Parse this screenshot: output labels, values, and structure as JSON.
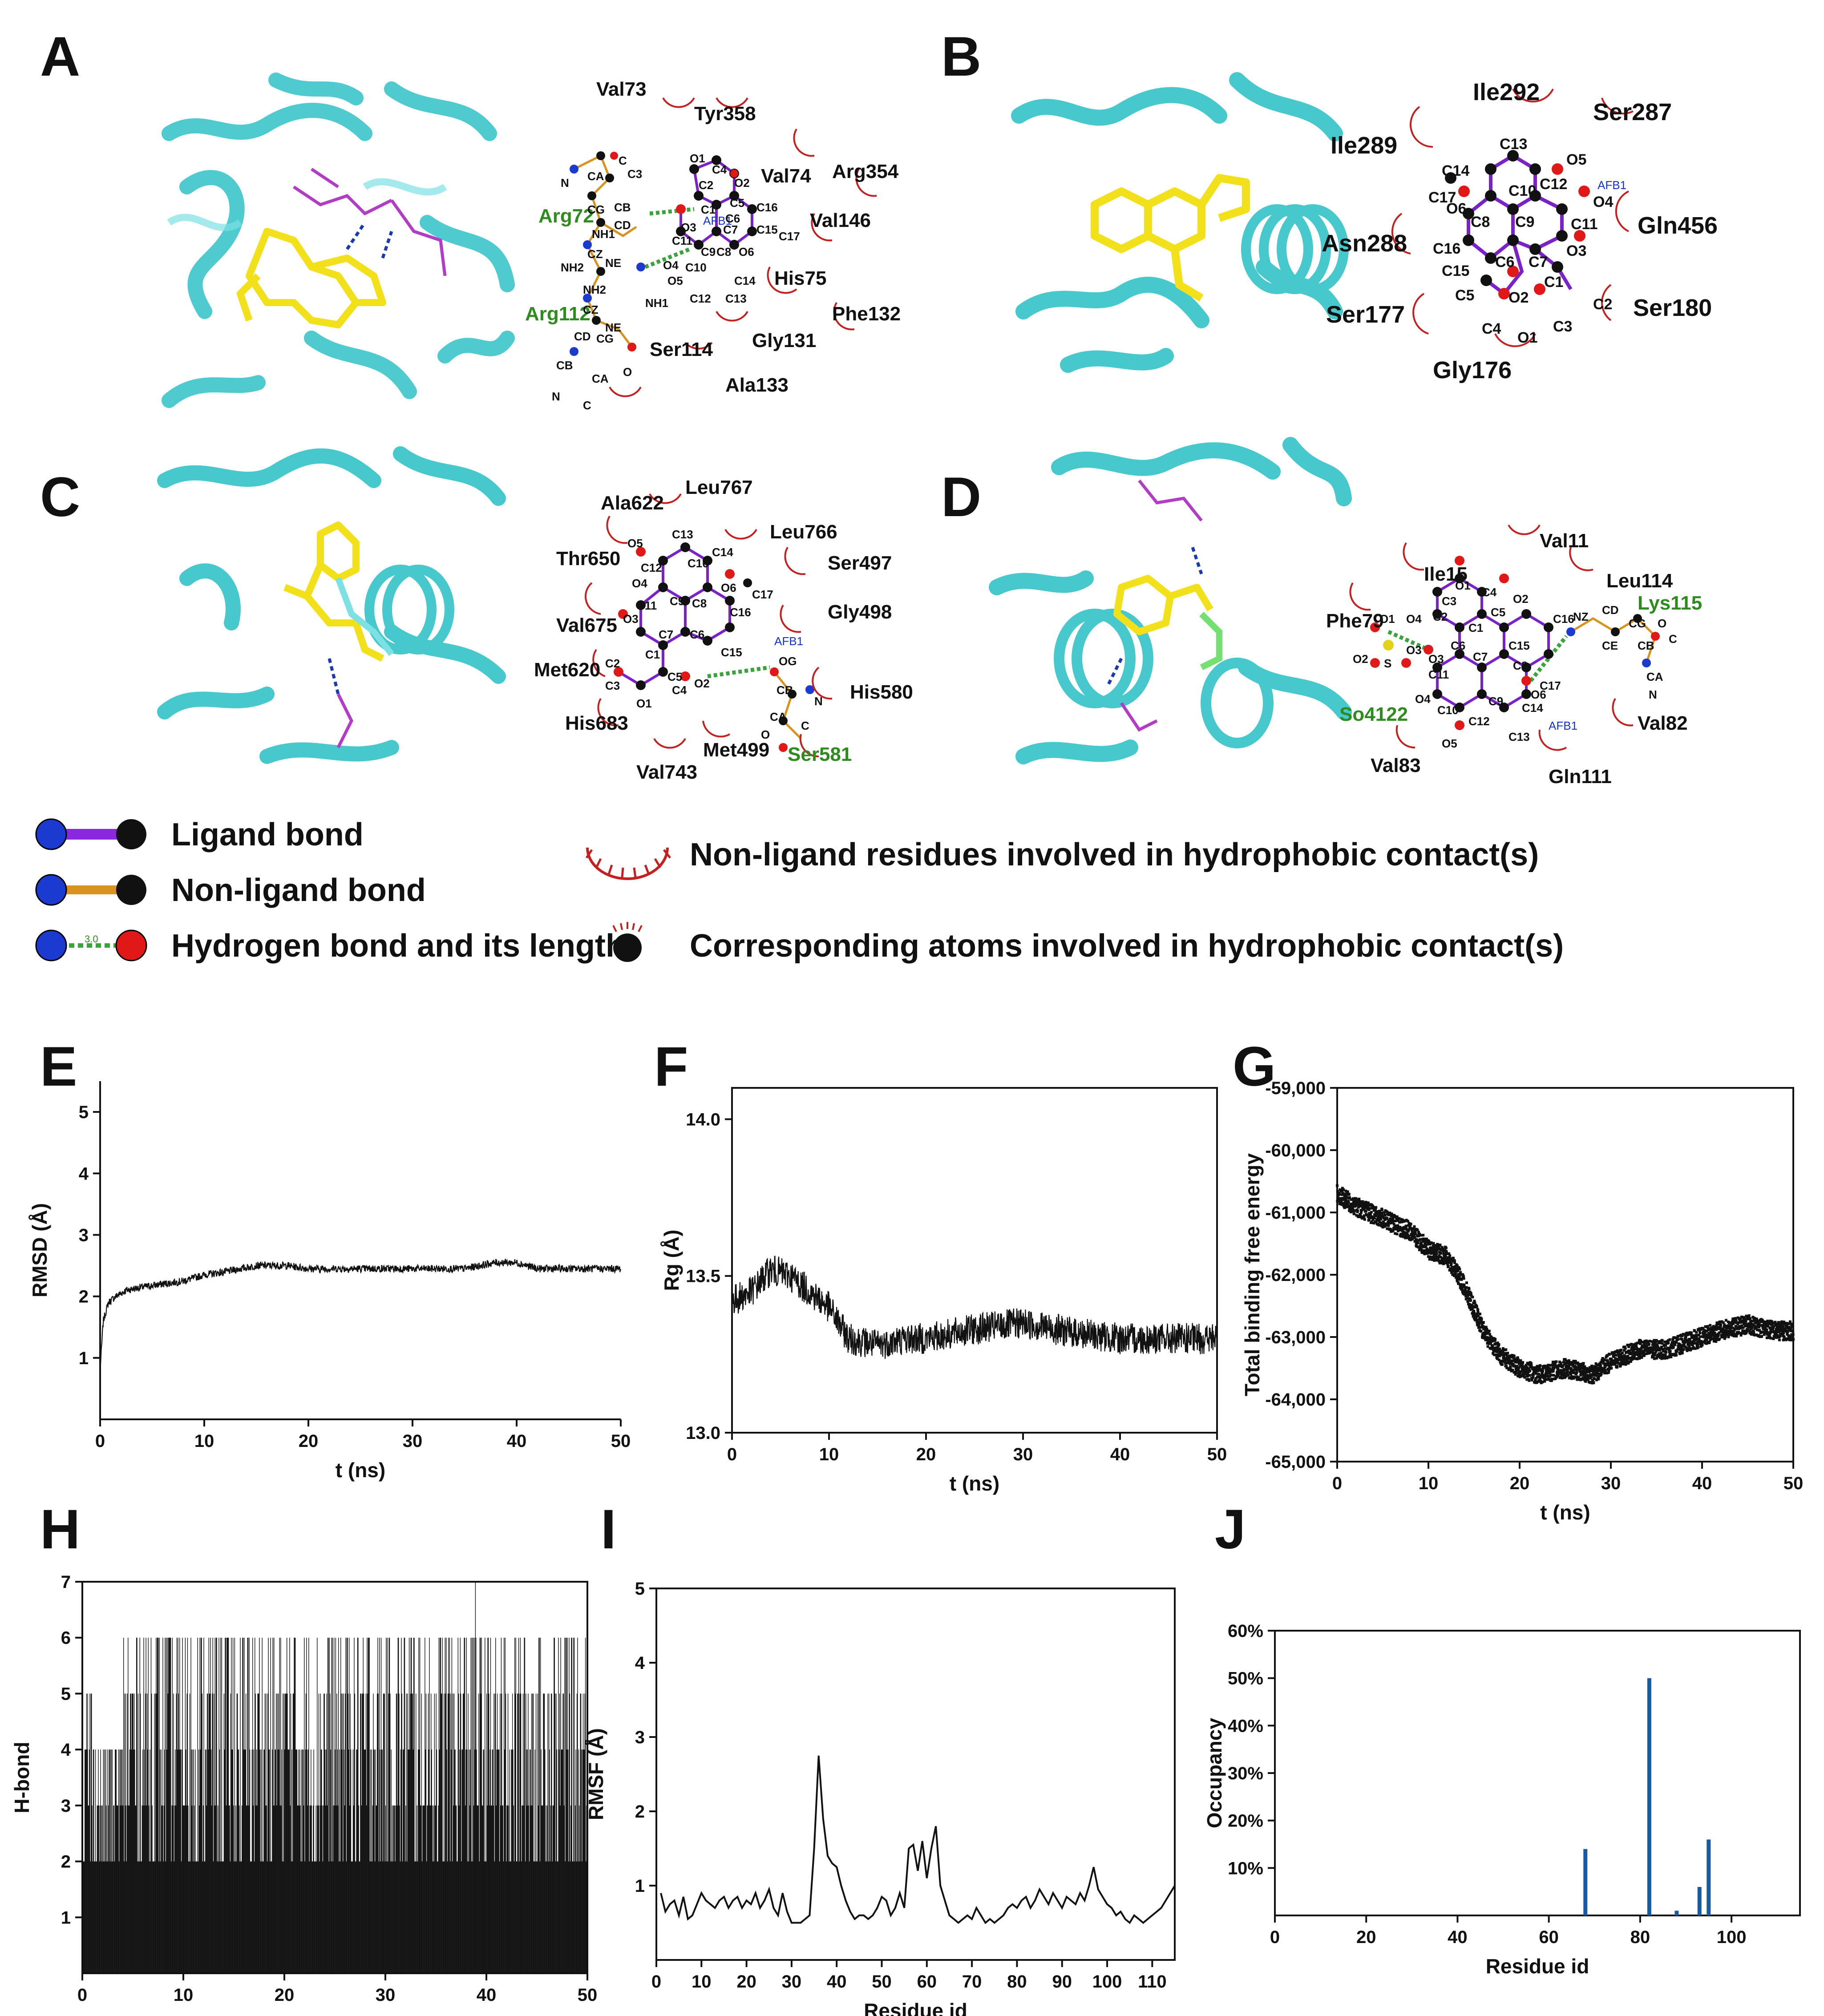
{
  "figure": {
    "panel_labels": [
      "A",
      "B",
      "C",
      "D",
      "E",
      "F",
      "G",
      "H",
      "I",
      "J"
    ],
    "ligand_code": "AFB1",
    "hbond_len_text": "3.0",
    "panels": {
      "A": {
        "residues": [
          "Val73",
          "Tyr358",
          "Val74",
          "Arg354",
          "Val146",
          "His75",
          "Phe132",
          "Gly131",
          "Ala133",
          "Ser114"
        ],
        "hbond_residues": [
          "Arg72",
          "Arg112"
        ],
        "atoms": [
          "C",
          "C3",
          "O1",
          "C4",
          "O2",
          "C2",
          "C5",
          "C1",
          "C6",
          "C7",
          "C16",
          "C15",
          "C17",
          "O6",
          "O3",
          "C11",
          "C9",
          "C8",
          "C10",
          "O5",
          "C14",
          "C12",
          "C13",
          "O4",
          "CA",
          "N",
          "CB",
          "CG",
          "CD",
          "NH1",
          "NE",
          "CZ",
          "NH2",
          "NH2",
          "NH1",
          "CZ",
          "NE",
          "CD",
          "CG",
          "CB",
          "CA",
          "O",
          "N",
          "C"
        ]
      },
      "B": {
        "residues": [
          "Ile292",
          "Ser287",
          "Ile289",
          "Gln456",
          "Asn288",
          "Ser180",
          "Ser177",
          "Gly176"
        ],
        "atoms": [
          "C13",
          "O5",
          "C14",
          "C12",
          "C10",
          "C17",
          "O4",
          "O6",
          "C8",
          "C9",
          "C11",
          "C16",
          "O3",
          "C6",
          "C7",
          "C15",
          "C1",
          "C5",
          "O2",
          "C2",
          "C4",
          "C3",
          "O1"
        ]
      },
      "C": {
        "residues": [
          "Leu767",
          "Ala622",
          "Leu766",
          "Ser497",
          "Thr650",
          "Gly498",
          "Val675",
          "Met620",
          "His580",
          "His683",
          "Met499",
          "Val743"
        ],
        "hbond_residues": [
          "Ser581"
        ],
        "atoms": [
          "O5",
          "C13",
          "C12",
          "C10",
          "C14",
          "O4",
          "C9",
          "C8",
          "O6",
          "C17",
          "C11",
          "C16",
          "O3",
          "C7",
          "C6",
          "C15",
          "C1",
          "C5",
          "OG",
          "C2",
          "O2",
          "CB",
          "C3",
          "C4",
          "CA",
          "N",
          "O1",
          "C",
          "O"
        ]
      },
      "D": {
        "residues": [
          "Val11",
          "Ile15",
          "Leu114",
          "Phe79",
          "Val82",
          "Val83",
          "Gln111"
        ],
        "hbond_residues": [
          "Lys115",
          "So4122"
        ],
        "atoms": [
          "O1",
          "C4",
          "C3",
          "C5",
          "O2",
          "C2",
          "C1",
          "O1",
          "O4",
          "C6",
          "C16",
          "NZ",
          "CD",
          "CG",
          "O",
          "O3",
          "C15",
          "C",
          "O2",
          "S",
          "O3",
          "C11",
          "C7",
          "C8",
          "CE",
          "CB",
          "O4",
          "C10",
          "C9",
          "O6",
          "C17",
          "CA",
          "C12",
          "C14",
          "N",
          "O5",
          "C13"
        ]
      }
    },
    "legend": {
      "ligand_bond": "Ligand bond",
      "non_ligand_bond": "Non-ligand bond",
      "hbond": "Hydrogen bond and its length",
      "hydrophobic_residue": "Non-ligand residues involved in hydrophobic contact(s)",
      "hydrophobic_atom": "Corresponding atoms involved in hydrophobic contact(s)"
    }
  },
  "chart_data": [
    {
      "panel": "E",
      "type": "line",
      "title": "",
      "xlabel": "t (ns)",
      "ylabel": "RMSD (Å)",
      "xlim": [
        0,
        50
      ],
      "ylim": [
        0,
        5.5
      ],
      "xticks": [
        "0",
        "10",
        "20",
        "30",
        "40",
        "50"
      ],
      "yticks": [
        "1",
        "2",
        "3",
        "4",
        "5"
      ],
      "series": [
        {
          "name": "RMSD",
          "x": [
            0,
            0.3,
            0.8,
            1.5,
            2.5,
            4,
            6,
            8,
            10,
            12,
            15,
            18,
            20,
            22,
            25,
            28,
            30,
            32,
            35,
            38,
            40,
            42,
            45,
            48,
            50
          ],
          "y": [
            0.8,
            1.6,
            1.9,
            2.0,
            2.1,
            2.15,
            2.2,
            2.25,
            2.35,
            2.4,
            2.5,
            2.5,
            2.45,
            2.45,
            2.45,
            2.45,
            2.45,
            2.45,
            2.45,
            2.55,
            2.55,
            2.45,
            2.45,
            2.45,
            2.45
          ],
          "noise": 0.06
        }
      ]
    },
    {
      "panel": "F",
      "type": "line",
      "title": "",
      "xlabel": "t (ns)",
      "ylabel": "Rg (Å)",
      "xlim": [
        0,
        50
      ],
      "ylim": [
        13.0,
        14.1
      ],
      "xticks": [
        "0",
        "10",
        "20",
        "30",
        "40",
        "50"
      ],
      "yticks": [
        "13.0",
        "13.5",
        "14.0"
      ],
      "series": [
        {
          "name": "Rg",
          "x": [
            0,
            2,
            4,
            6,
            8,
            10,
            12,
            15,
            18,
            20,
            25,
            30,
            35,
            40,
            45,
            50
          ],
          "y": [
            13.42,
            13.45,
            13.52,
            13.5,
            13.45,
            13.4,
            13.3,
            13.28,
            13.3,
            13.3,
            13.33,
            13.35,
            13.32,
            13.3,
            13.3,
            13.3
          ],
          "noise": 0.05
        }
      ]
    },
    {
      "panel": "G",
      "type": "scatter",
      "title": "",
      "xlabel": "t (ns)",
      "ylabel": "Total binding free energy",
      "xlim": [
        0,
        50
      ],
      "ylim": [
        -65000,
        -59000
      ],
      "xticks": [
        "0",
        "10",
        "20",
        "30",
        "40",
        "50"
      ],
      "yticks": [
        "-59,000",
        "-60,000",
        "-61,000",
        "-62,000",
        "-63,000",
        "-64,000",
        "-65,000"
      ],
      "series": [
        {
          "name": "Energy",
          "x": [
            0,
            2,
            5,
            8,
            10,
            12,
            14,
            16,
            18,
            20,
            22,
            25,
            28,
            30,
            33,
            36,
            40,
            42,
            45,
            48,
            50
          ],
          "y": [
            -60700,
            -60900,
            -61100,
            -61300,
            -61600,
            -61700,
            -62200,
            -62900,
            -63300,
            -63500,
            -63600,
            -63500,
            -63600,
            -63400,
            -63200,
            -63200,
            -63000,
            -62900,
            -62800,
            -62900,
            -62900
          ],
          "noise": 150
        }
      ]
    },
    {
      "panel": "H",
      "type": "bar",
      "title": "",
      "xlabel": "t (ns)",
      "ylabel": "H-bond",
      "xlim": [
        0,
        50
      ],
      "ylim": [
        0,
        7
      ],
      "xticks": [
        "0",
        "10",
        "20",
        "30",
        "40",
        "50"
      ],
      "yticks": [
        "1",
        "2",
        "3",
        "4",
        "5",
        "6",
        "7"
      ],
      "series": [
        {
          "name": "H-bond count",
          "levels": [
            0,
            1,
            2,
            3,
            4,
            5,
            6,
            7
          ],
          "typical_range_by_segment": [
            {
              "t": [
                0,
                1
              ],
              "min": 2,
              "max": 5
            },
            {
              "t": [
                1,
                4
              ],
              "min": 2,
              "max": 4
            },
            {
              "t": [
                4,
                50
              ],
              "min": 2,
              "max": 6
            }
          ],
          "max_observed": 7
        }
      ]
    },
    {
      "panel": "I",
      "type": "line",
      "title": "",
      "xlabel": "Residue id",
      "ylabel": "RMSF (Å)",
      "xlim": [
        0,
        115
      ],
      "ylim": [
        0,
        5
      ],
      "xticks": [
        "0",
        "10",
        "20",
        "30",
        "40",
        "50",
        "60",
        "70",
        "80",
        "90",
        "100",
        "110"
      ],
      "yticks": [
        "1",
        "2",
        "3",
        "4",
        "5"
      ],
      "series": [
        {
          "name": "RMSF",
          "x": [
            1,
            2,
            3,
            4,
            5,
            6,
            7,
            8,
            9,
            10,
            11,
            12,
            13,
            14,
            15,
            16,
            17,
            18,
            19,
            20,
            21,
            22,
            23,
            24,
            25,
            26,
            27,
            28,
            29,
            30,
            31,
            32,
            33,
            34,
            35,
            36,
            37,
            38,
            39,
            40,
            41,
            42,
            43,
            44,
            45,
            46,
            47,
            48,
            49,
            50,
            51,
            52,
            53,
            54,
            55,
            56,
            57,
            58,
            59,
            60,
            61,
            62,
            63,
            64,
            65,
            66,
            67,
            68,
            69,
            70,
            71,
            72,
            73,
            74,
            75,
            76,
            77,
            78,
            79,
            80,
            81,
            82,
            83,
            84,
            85,
            86,
            87,
            88,
            89,
            90,
            91,
            92,
            93,
            94,
            95,
            96,
            97,
            98,
            99,
            100,
            101,
            102,
            103,
            104,
            105,
            106,
            107,
            108,
            109,
            110,
            111,
            112,
            113,
            114,
            115
          ],
          "y": [
            0.9,
            0.65,
            0.75,
            0.8,
            0.6,
            0.85,
            0.55,
            0.6,
            0.75,
            0.9,
            0.8,
            0.75,
            0.7,
            0.8,
            0.85,
            0.7,
            0.8,
            0.85,
            0.7,
            0.8,
            0.75,
            0.9,
            0.7,
            0.8,
            0.95,
            0.7,
            0.6,
            0.9,
            0.65,
            0.5,
            0.5,
            0.5,
            0.55,
            0.6,
            1.5,
            2.75,
            1.9,
            1.4,
            1.3,
            1.25,
            1.0,
            0.8,
            0.65,
            0.55,
            0.6,
            0.6,
            0.55,
            0.6,
            0.7,
            0.85,
            0.8,
            0.6,
            0.7,
            0.9,
            0.7,
            1.5,
            1.55,
            1.2,
            1.6,
            1.1,
            1.5,
            1.8,
            1.0,
            0.8,
            0.6,
            0.55,
            0.5,
            0.55,
            0.6,
            0.55,
            0.7,
            0.6,
            0.5,
            0.55,
            0.5,
            0.55,
            0.6,
            0.7,
            0.75,
            0.7,
            0.8,
            0.85,
            0.7,
            0.8,
            0.95,
            0.85,
            0.75,
            0.9,
            0.8,
            0.7,
            0.85,
            0.8,
            0.75,
            0.9,
            0.8,
            1.0,
            1.25,
            0.95,
            0.85,
            0.75,
            0.7,
            0.6,
            0.65,
            0.55,
            0.5,
            0.6,
            0.55,
            0.5,
            0.55,
            0.6,
            0.65,
            0.7,
            0.8,
            0.9,
            1.0
          ]
        }
      ]
    },
    {
      "panel": "J",
      "type": "bar",
      "title": "",
      "xlabel": "Residue id",
      "ylabel": "Occupancy",
      "xlim": [
        0,
        115
      ],
      "ylim": [
        0,
        60
      ],
      "xticks": [
        "0",
        "20",
        "40",
        "60",
        "80",
        "100"
      ],
      "yticks": [
        "10%",
        "20%",
        "30%",
        "40%",
        "50%",
        "60%"
      ],
      "categories": [
        68,
        82,
        88,
        93,
        95
      ],
      "values": [
        14,
        50,
        1,
        6,
        16
      ],
      "bar_color": "#1c5aa0"
    }
  ]
}
